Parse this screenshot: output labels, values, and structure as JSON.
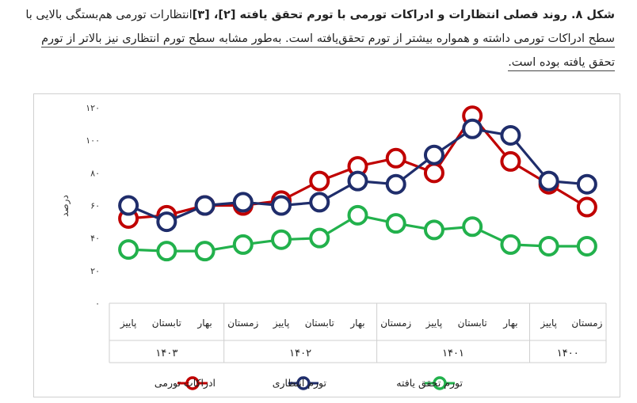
{
  "caption": {
    "line1_head": "شکل ۸. روند فصلی انتظارات و ادراکات تورمی با تورم تحقق یافته [۲]، [۳]",
    "line1_tail": "انتظارات تورمی هم‌بستگی بالایی با",
    "line2": "سطح ادراکات تورمی داشته و همواره بیشتر از تورم تحقق‌یافته است. به‌طور مشابه سطح تورم انتظاری نیز بالاتر از تورم",
    "line3": "تحقق یافته بوده است."
  },
  "chart_data": {
    "type": "line",
    "ylabel": "درصد",
    "ylim": [
      0,
      120
    ],
    "yticks": [
      0,
      20,
      40,
      60,
      80,
      100,
      120
    ],
    "ytick_labels": [
      "۰",
      "۲۰",
      "۴۰",
      "۶۰",
      "۸۰",
      "۱۰۰",
      "۱۲۰"
    ],
    "categories": [
      "زمستان",
      "پاییز",
      "بهار",
      "تابستان",
      "پاییز",
      "زمستان",
      "بهار",
      "تابستان",
      "پاییز",
      "زمستان",
      "بهار",
      "تابستان",
      "پاییز"
    ],
    "year_groups": [
      {
        "label": "۱۴۰۰",
        "start": 0,
        "end": 1
      },
      {
        "label": "۱۴۰۱",
        "start": 2,
        "end": 5
      },
      {
        "label": "۱۴۰۲",
        "start": 6,
        "end": 9
      },
      {
        "label": "۱۴۰۳",
        "start": 10,
        "end": 12
      }
    ],
    "series": [
      {
        "name": "ادراکات تورمی",
        "color": "#c00000",
        "values": [
          59,
          73,
          87,
          115,
          80,
          89,
          84,
          75,
          63,
          60,
          60,
          54,
          52
        ]
      },
      {
        "name": "تورم انتظاری",
        "color": "#1f2d6b",
        "values": [
          73,
          75,
          103,
          107,
          91,
          73,
          75,
          62,
          60,
          62,
          60,
          50,
          60
        ]
      },
      {
        "name": "تورم تحقق یافته",
        "color": "#22b14c",
        "values": [
          35,
          35,
          36,
          47,
          45,
          49,
          54,
          40,
          39,
          36,
          32,
          32,
          33
        ]
      }
    ],
    "legend_position": "bottom",
    "grid": false
  }
}
